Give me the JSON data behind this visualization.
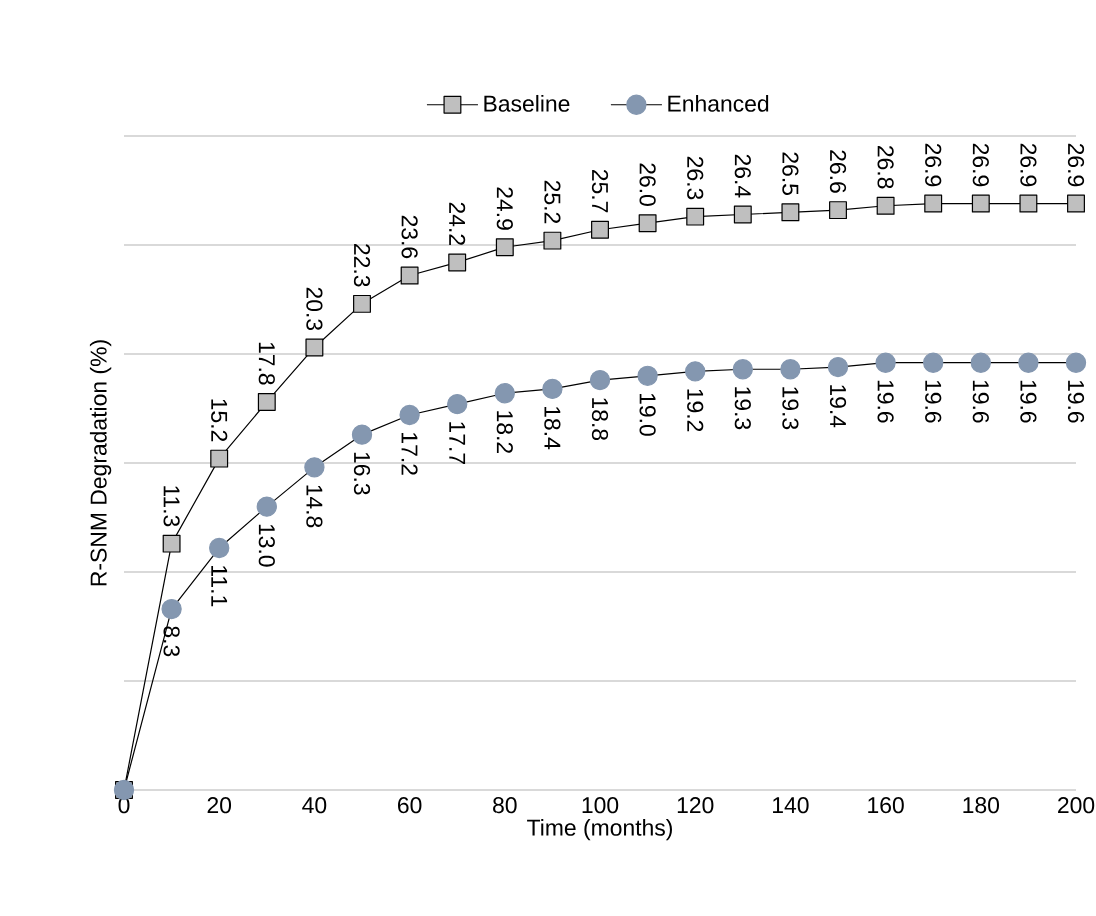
{
  "chart_data": {
    "type": "line",
    "xlabel": "Time (months)",
    "ylabel": "R-SNM Degradation (%)",
    "x": [
      0,
      10,
      20,
      30,
      40,
      50,
      60,
      70,
      80,
      90,
      100,
      110,
      120,
      130,
      140,
      150,
      160,
      170,
      180,
      190,
      200
    ],
    "series": [
      {
        "name": "Baseline",
        "color": "#bfbfbf",
        "marker": "square",
        "values": [
          0,
          11.3,
          15.2,
          17.8,
          20.3,
          22.3,
          23.6,
          24.2,
          24.9,
          25.2,
          25.7,
          26.0,
          26.3,
          26.4,
          26.5,
          26.6,
          26.8,
          26.9,
          26.9,
          26.9,
          26.9
        ],
        "value_labels": [
          null,
          "11.3",
          "15.2",
          "17.8",
          "20.3",
          "22.3",
          "23.6",
          "24.2",
          "24.9",
          "25.2",
          "25.7",
          "26.0",
          "26.3",
          "26.4",
          "26.5",
          "26.6",
          "26.8",
          "26.9",
          "26.9",
          "26.9",
          "26.9"
        ]
      },
      {
        "name": "Enhanced",
        "color": "#8497b0",
        "marker": "circle",
        "values": [
          0,
          8.3,
          11.1,
          13.0,
          14.8,
          16.3,
          17.2,
          17.7,
          18.2,
          18.4,
          18.8,
          19.0,
          19.2,
          19.3,
          19.3,
          19.4,
          19.6,
          19.6,
          19.6,
          19.6,
          19.6
        ],
        "value_labels": [
          null,
          "8.3",
          "11.1",
          "13.0",
          "14.8",
          "16.3",
          "17.2",
          "17.7",
          "18.2",
          "18.4",
          "18.8",
          "19.0",
          "19.2",
          "19.3",
          "19.3",
          "19.4",
          "19.6",
          "19.6",
          "19.6",
          "19.6",
          "19.6"
        ]
      }
    ],
    "xlim": [
      0,
      200
    ],
    "xticks": [
      0,
      20,
      40,
      60,
      80,
      100,
      120,
      140,
      160,
      180,
      200
    ],
    "ylim": [
      0,
      30
    ],
    "yticks": [
      {
        "value": 0,
        "label": null
      },
      {
        "value": 5,
        "label": null
      },
      {
        "value": 10,
        "label": null
      },
      {
        "value": 15,
        "label": null
      },
      {
        "value": 20,
        "label": null
      },
      {
        "value": 25,
        "label": null
      },
      {
        "value": 30,
        "label": null
      }
    ],
    "tick_labels": "x",
    "grid": "y",
    "legend": "top"
  }
}
